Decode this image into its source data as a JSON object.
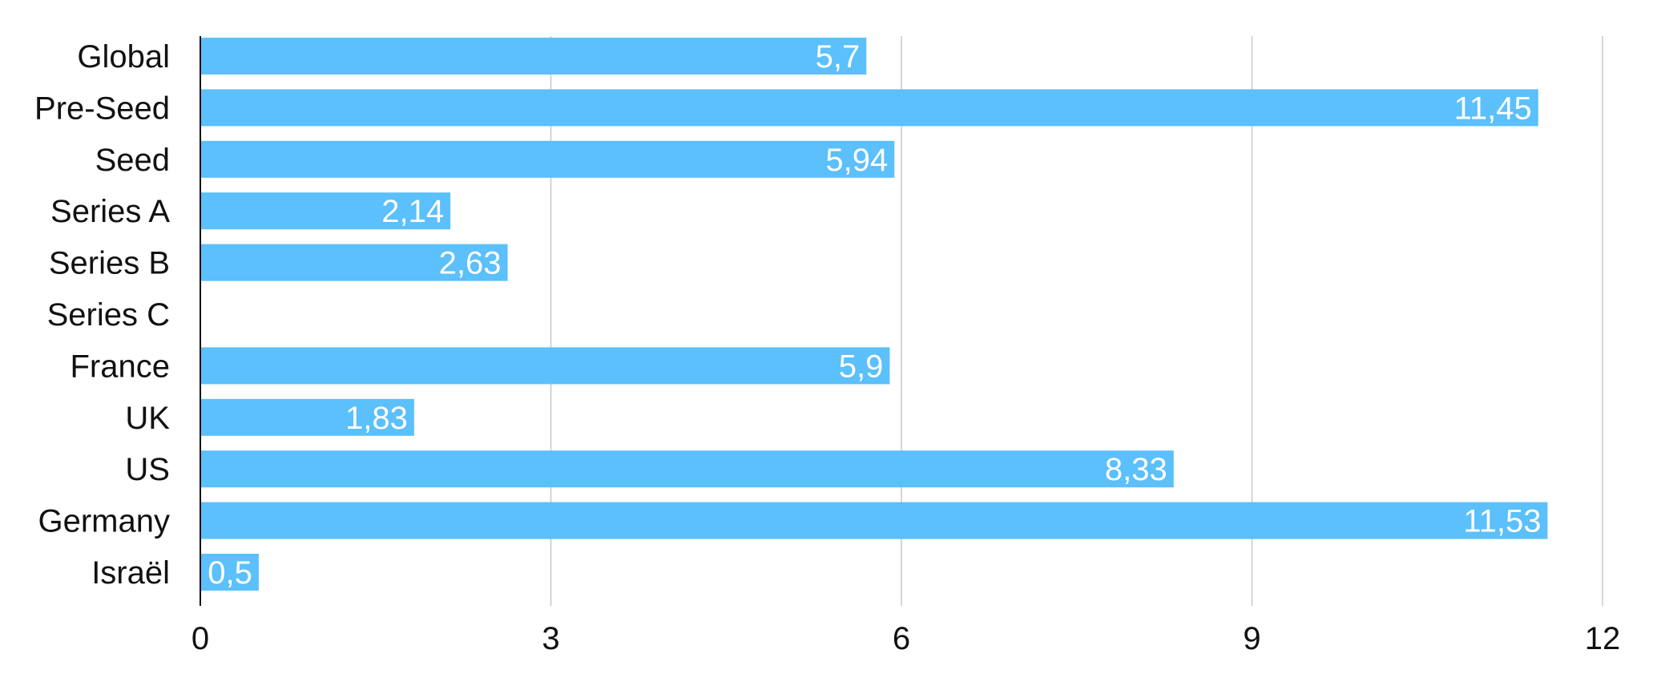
{
  "chart_data": {
    "type": "bar",
    "orientation": "horizontal",
    "categories": [
      "Global",
      "Pre-Seed",
      "Seed",
      "Series A",
      "Series B",
      "Series C",
      "France",
      "UK",
      "US",
      "Germany",
      "Israël"
    ],
    "values": [
      5.7,
      11.45,
      5.94,
      2.14,
      2.63,
      null,
      5.9,
      1.83,
      8.33,
      11.53,
      0.5
    ],
    "value_labels": [
      "5,7",
      "11,45",
      "5,94",
      "2,14",
      "2,63",
      "",
      "5,9",
      "1,83",
      "8,33",
      "11,53",
      "0,5"
    ],
    "title": "",
    "xlabel": "",
    "ylabel": "",
    "xlim": [
      0,
      12
    ],
    "x_ticks": [
      0,
      3,
      6,
      9,
      12
    ],
    "x_tick_labels": [
      "0",
      "3",
      "6",
      "9",
      "12"
    ],
    "grid": "vertical",
    "legend": "none",
    "bar_color": "#5BC0FB",
    "grid_color": "#c8c8c8",
    "axis_color": "#111111",
    "label_color": "#111111",
    "value_label_color": "#ffffff"
  }
}
